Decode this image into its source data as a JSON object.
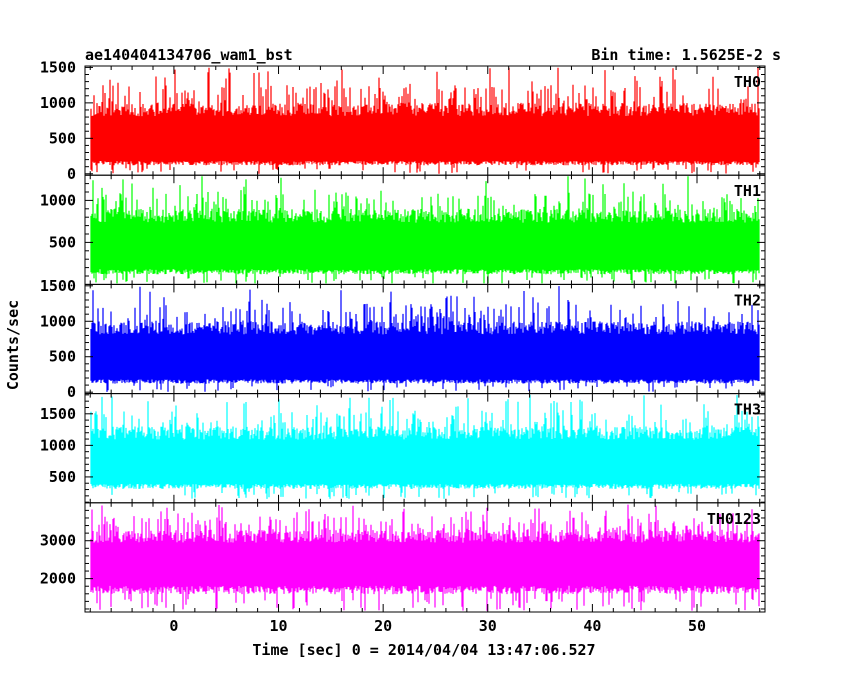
{
  "header": {
    "title": "ae140404134706_wam1_bst",
    "bin_time": "Bin time: 1.5625E-2 s"
  },
  "chart_data": {
    "type": "line",
    "xlabel": "Time [sec] 0 = 2014/04/04 13:47:06.527",
    "ylabel": "Counts/sec",
    "xlim": [
      -8.5,
      56.5
    ],
    "x_ticks": [
      0,
      10,
      20,
      30,
      40,
      50
    ],
    "x_range_data": [
      -7.9,
      55.9
    ],
    "bin_time_s": 0.015625,
    "grid": false,
    "panels": [
      {
        "name": "TH0",
        "color": "#ff0000",
        "ylim": [
          -20,
          1520
        ],
        "y_ticks": [
          0,
          500,
          1000,
          1500
        ],
        "typical_low": 150,
        "typical_high": 1000,
        "bottom": 0,
        "peak": 1500
      },
      {
        "name": "TH1",
        "color": "#00ff00",
        "ylim": [
          0,
          1300
        ],
        "y_ticks": [
          500,
          1000
        ],
        "typical_low": 150,
        "typical_high": 900,
        "bottom": 0,
        "peak": 1300
      },
      {
        "name": "TH2",
        "color": "#0000ff",
        "ylim": [
          -20,
          1520
        ],
        "y_ticks": [
          0,
          500,
          1000,
          1500
        ],
        "typical_low": 150,
        "typical_high": 1000,
        "bottom": 0,
        "peak": 1500
      },
      {
        "name": "TH3",
        "color": "#00ffff",
        "ylim": [
          90,
          1820
        ],
        "y_ticks": [
          500,
          1000,
          1500
        ],
        "typical_low": 350,
        "typical_high": 1300,
        "bottom": 150,
        "peak": 1800
      },
      {
        "name": "TH0123",
        "color": "#ff00ff",
        "ylim": [
          1120,
          4000
        ],
        "y_ticks": [
          2000,
          3000
        ],
        "typical_low": 1700,
        "typical_high": 3300,
        "bottom": 1150,
        "peak": 4000
      }
    ]
  }
}
